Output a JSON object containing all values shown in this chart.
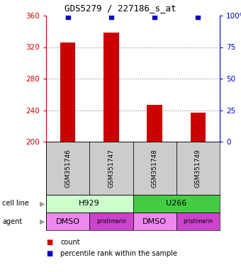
{
  "title": "GDS5279 / 227186_s_at",
  "samples": [
    "GSM351746",
    "GSM351747",
    "GSM351748",
    "GSM351749"
  ],
  "counts": [
    326,
    338,
    247,
    237
  ],
  "percentiles": [
    99,
    99,
    99,
    99
  ],
  "ylim": [
    200,
    360
  ],
  "yticks": [
    200,
    240,
    280,
    320,
    360
  ],
  "right_yticks": [
    0,
    25,
    50,
    75,
    100
  ],
  "right_ylabels": [
    "0",
    "25",
    "50",
    "75",
    "100%"
  ],
  "bar_color": "#cc0000",
  "dot_color": "#0000cc",
  "bar_width": 0.35,
  "agents": [
    "DMSO",
    "pristimerin",
    "DMSO",
    "pristimerin"
  ],
  "cell_line_bg_H929": "#ccffcc",
  "cell_line_bg_U266": "#44cc44",
  "agent_bg_DMSO": "#ee88ee",
  "agent_bg_pristimerin": "#cc44cc",
  "sample_bg": "#cccccc",
  "grid_color": "#888888",
  "left_label_color": "#cc0000",
  "right_label_color": "#0000cc",
  "gridline_values": [
    320,
    280,
    240
  ]
}
